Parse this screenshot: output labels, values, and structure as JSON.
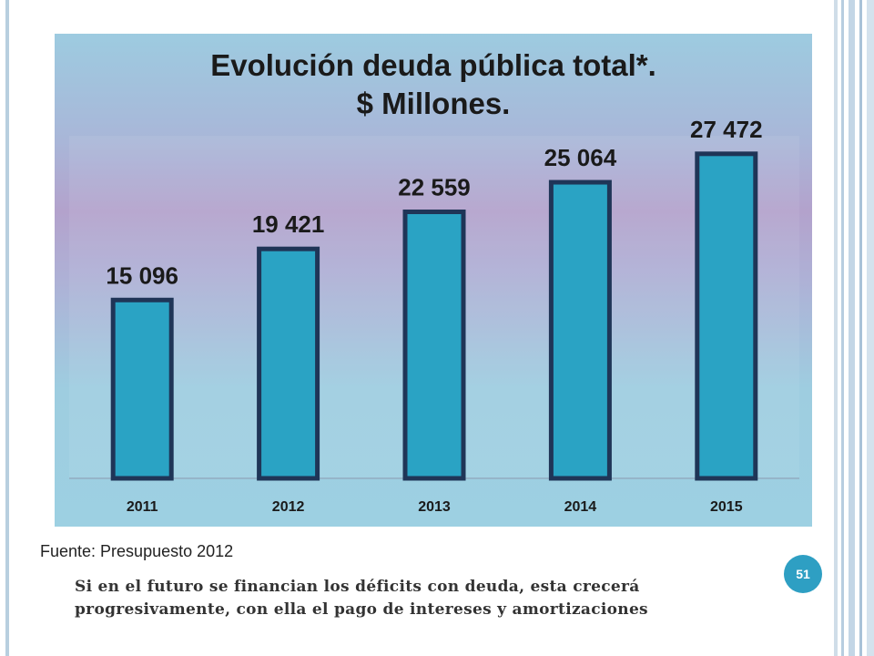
{
  "chart_data": {
    "type": "bar",
    "title_lines": [
      "Evolución deuda pública total*.",
      "$ Millones."
    ],
    "categories": [
      "2011",
      "2012",
      "2013",
      "2014",
      "2015"
    ],
    "values": [
      15096,
      19421,
      22559,
      25064,
      27472
    ],
    "data_labels": [
      "15 096",
      "19 421",
      "22 559",
      "25 064",
      "27 472"
    ],
    "ylim": [
      0,
      29000
    ],
    "grid": false,
    "legend": "none",
    "bar_color": "#2aa3c4",
    "bar_border_color": "#1f3557"
  },
  "source_note": "Fuente: Presupuesto 2012",
  "footer_text": "Si en el futuro se financian los déficits con deuda, esta crecerá  progresivamente, con ella el pago de intereses y amortizaciones",
  "page_number": "51",
  "colors": {
    "accent": "#2e9fc3",
    "rule": "#b8cfdf"
  }
}
